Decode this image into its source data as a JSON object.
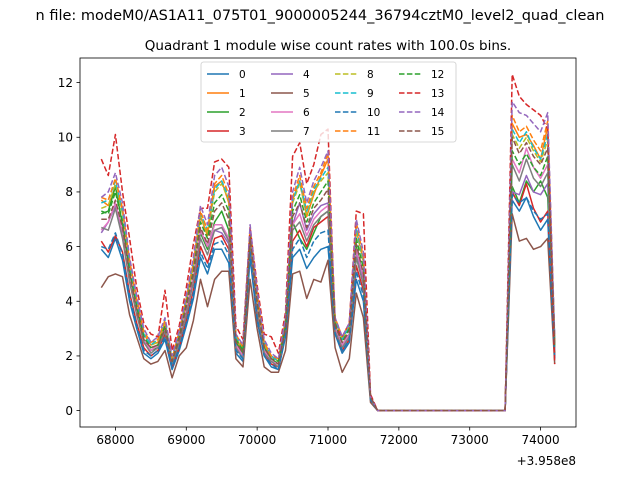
{
  "suptitle": "n file: modeM0/AS1A11_075T01_9000005244_36794cztM0_level2_quad_clean",
  "chart_data": {
    "type": "line",
    "title": "Quadrant 1 module wise count rates with 100.0s bins.",
    "xlabel": "",
    "ylabel": "",
    "x_offset_label": "+3.958e8",
    "xlim": [
      67500,
      74500
    ],
    "ylim": [
      -0.6,
      12.9
    ],
    "xticks": [
      68000,
      69000,
      70000,
      71000,
      72000,
      73000,
      74000
    ],
    "xtick_labels": [
      "68000",
      "69000",
      "70000",
      "71000",
      "72000",
      "73000",
      "74000"
    ],
    "yticks": [
      0,
      2,
      4,
      6,
      8,
      10,
      12
    ],
    "ytick_labels": [
      "0",
      "2",
      "4",
      "6",
      "8",
      "10",
      "12"
    ],
    "legend_position": "top-center",
    "x": [
      67800,
      67900,
      68000,
      68100,
      68200,
      68300,
      68400,
      68500,
      68600,
      68700,
      68800,
      68900,
      69000,
      69100,
      69200,
      69300,
      69400,
      69500,
      69600,
      69700,
      69800,
      69900,
      70000,
      70100,
      70200,
      70300,
      70400,
      70500,
      70600,
      70700,
      70800,
      70900,
      71000,
      71100,
      71200,
      71300,
      71400,
      71500,
      71600,
      71700,
      71800,
      71900,
      72000,
      72100,
      72200,
      72300,
      72400,
      72500,
      72600,
      72700,
      72800,
      72900,
      73000,
      73100,
      73200,
      73300,
      73400,
      73500,
      73600,
      73700,
      73800,
      73900,
      74000,
      74100,
      74200
    ],
    "series": [
      {
        "name": "0",
        "color": "#1f77b4",
        "style": "solid",
        "values": [
          5.9,
          5.6,
          6.3,
          5.5,
          4.0,
          3.0,
          2.1,
          1.9,
          2.1,
          2.6,
          1.5,
          2.2,
          3.1,
          4.1,
          5.6,
          5.0,
          5.9,
          5.9,
          5.4,
          2.1,
          1.8,
          5.6,
          3.3,
          2.0,
          1.6,
          1.5,
          2.7,
          5.6,
          5.9,
          5.2,
          5.6,
          5.9,
          6.0,
          2.8,
          2.1,
          2.5,
          4.8,
          4.0,
          0.4,
          0.0,
          0.0,
          0.0,
          0.0,
          0.0,
          0.0,
          0.0,
          0.0,
          0.0,
          0.0,
          0.0,
          0.0,
          0.0,
          0.0,
          0.0,
          0.0,
          0.0,
          0.0,
          0.0,
          7.7,
          7.3,
          7.8,
          7.1,
          6.6,
          7.0,
          1.9
        ]
      },
      {
        "name": "1",
        "color": "#ff7f0e",
        "style": "solid",
        "values": [
          7.7,
          7.5,
          8.2,
          7.3,
          5.4,
          4.0,
          2.8,
          2.4,
          2.5,
          3.2,
          1.8,
          2.7,
          4.0,
          5.3,
          7.1,
          6.4,
          8.2,
          8.4,
          7.6,
          2.6,
          2.2,
          6.6,
          4.2,
          2.4,
          2.0,
          1.8,
          3.3,
          7.7,
          8.4,
          7.1,
          7.9,
          8.6,
          9.2,
          3.3,
          2.6,
          3.1,
          6.6,
          5.5,
          0.5,
          0.0,
          0.0,
          0.0,
          0.0,
          0.0,
          0.0,
          0.0,
          0.0,
          0.0,
          0.0,
          0.0,
          0.0,
          0.0,
          0.0,
          0.0,
          0.0,
          0.0,
          0.0,
          0.0,
          10.5,
          10.0,
          10.1,
          9.7,
          9.2,
          10.4,
          2.4
        ]
      },
      {
        "name": "2",
        "color": "#2ca02c",
        "style": "solid",
        "values": [
          7.2,
          7.3,
          8.2,
          6.8,
          5.0,
          3.6,
          2.5,
          2.2,
          2.3,
          2.9,
          1.7,
          2.5,
          3.6,
          4.8,
          6.5,
          5.9,
          6.9,
          7.3,
          6.6,
          2.5,
          2.1,
          6.3,
          3.8,
          2.3,
          1.9,
          1.7,
          3.0,
          6.9,
          6.3,
          5.9,
          6.5,
          7.1,
          7.3,
          3.0,
          2.4,
          2.8,
          6.0,
          4.9,
          0.5,
          0.0,
          0.0,
          0.0,
          0.0,
          0.0,
          0.0,
          0.0,
          0.0,
          0.0,
          0.0,
          0.0,
          0.0,
          0.0,
          0.0,
          0.0,
          0.0,
          0.0,
          0.0,
          0.0,
          8.2,
          7.6,
          8.4,
          8.0,
          8.4,
          7.8,
          2.1
        ]
      },
      {
        "name": "3",
        "color": "#d62728",
        "style": "solid",
        "values": [
          6.2,
          5.8,
          6.4,
          5.8,
          4.3,
          3.2,
          2.3,
          2.0,
          2.2,
          2.8,
          1.6,
          2.3,
          3.3,
          4.4,
          6.0,
          5.4,
          6.3,
          6.4,
          5.9,
          2.3,
          1.9,
          6.0,
          3.5,
          2.1,
          1.7,
          1.6,
          2.9,
          6.2,
          6.6,
          6.0,
          6.7,
          6.9,
          7.1,
          2.9,
          2.2,
          2.6,
          5.3,
          4.4,
          0.4,
          0.0,
          0.0,
          0.0,
          0.0,
          0.0,
          0.0,
          0.0,
          0.0,
          0.0,
          0.0,
          0.0,
          0.0,
          0.0,
          0.0,
          0.0,
          0.0,
          0.0,
          0.0,
          0.0,
          8.0,
          7.5,
          8.3,
          7.4,
          6.9,
          7.3,
          2.0
        ]
      },
      {
        "name": "4",
        "color": "#9467bd",
        "style": "solid",
        "values": [
          6.5,
          6.9,
          7.5,
          6.5,
          4.9,
          3.6,
          2.6,
          2.2,
          2.4,
          3.0,
          1.7,
          2.6,
          3.7,
          4.9,
          6.6,
          6.0,
          6.6,
          6.5,
          6.1,
          2.4,
          2.0,
          6.0,
          3.7,
          2.2,
          1.8,
          1.7,
          3.0,
          6.8,
          7.6,
          6.6,
          7.2,
          7.5,
          7.6,
          3.1,
          2.4,
          2.8,
          5.8,
          4.8,
          0.5,
          0.0,
          0.0,
          0.0,
          0.0,
          0.0,
          0.0,
          0.0,
          0.0,
          0.0,
          0.0,
          0.0,
          0.0,
          0.0,
          0.0,
          0.0,
          0.0,
          0.0,
          0.0,
          0.0,
          8.0,
          7.9,
          8.6,
          8.0,
          7.9,
          8.3,
          2.2
        ]
      },
      {
        "name": "5",
        "color": "#8c564b",
        "style": "solid",
        "values": [
          4.5,
          4.9,
          5.0,
          4.9,
          3.5,
          2.7,
          1.9,
          1.7,
          1.8,
          2.2,
          1.2,
          2.0,
          2.3,
          3.3,
          4.8,
          3.8,
          4.8,
          5.1,
          5.1,
          1.9,
          1.6,
          4.8,
          3.0,
          1.6,
          1.4,
          1.4,
          2.2,
          5.0,
          5.1,
          4.1,
          4.8,
          4.7,
          5.5,
          2.3,
          1.4,
          1.9,
          4.3,
          3.4,
          0.3,
          0.0,
          0.0,
          0.0,
          0.0,
          0.0,
          0.0,
          0.0,
          0.0,
          0.0,
          0.0,
          0.0,
          0.0,
          0.0,
          0.0,
          0.0,
          0.0,
          0.0,
          0.0,
          0.0,
          7.2,
          6.2,
          6.3,
          5.9,
          6.0,
          6.3,
          1.7
        ]
      },
      {
        "name": "6",
        "color": "#e377c2",
        "style": "solid",
        "values": [
          6.6,
          6.9,
          7.6,
          6.6,
          4.9,
          3.7,
          2.6,
          2.2,
          2.4,
          3.0,
          1.8,
          2.6,
          3.7,
          4.9,
          6.6,
          6.0,
          6.8,
          6.8,
          6.3,
          2.4,
          2.0,
          6.2,
          3.8,
          2.2,
          1.8,
          1.7,
          3.0,
          6.8,
          7.2,
          6.4,
          7.0,
          7.3,
          7.5,
          3.0,
          2.4,
          2.8,
          5.9,
          4.9,
          0.5,
          0.0,
          0.0,
          0.0,
          0.0,
          0.0,
          0.0,
          0.0,
          0.0,
          0.0,
          0.0,
          0.0,
          0.0,
          0.0,
          0.0,
          0.0,
          0.0,
          0.0,
          0.0,
          0.0,
          9.2,
          8.7,
          9.6,
          8.9,
          8.5,
          9.0,
          2.4
        ]
      },
      {
        "name": "7",
        "color": "#7f7f7f",
        "style": "solid",
        "values": [
          6.7,
          6.6,
          7.4,
          6.3,
          4.7,
          3.5,
          2.5,
          2.1,
          2.3,
          2.9,
          1.7,
          2.5,
          3.5,
          4.7,
          6.3,
          5.7,
          6.6,
          6.7,
          6.2,
          2.3,
          1.9,
          6.1,
          3.6,
          2.1,
          1.8,
          1.6,
          2.9,
          6.6,
          6.9,
          6.2,
          6.8,
          7.1,
          7.3,
          2.9,
          2.3,
          2.7,
          5.6,
          4.6,
          0.4,
          0.0,
          0.0,
          0.0,
          0.0,
          0.0,
          0.0,
          0.0,
          0.0,
          0.0,
          0.0,
          0.0,
          0.0,
          0.0,
          0.0,
          0.0,
          0.0,
          0.0,
          0.0,
          0.0,
          9.0,
          8.4,
          9.2,
          8.5,
          8.2,
          8.7,
          2.3
        ]
      },
      {
        "name": "8",
        "color": "#bcbd22",
        "style": "dashed",
        "values": [
          7.4,
          7.5,
          8.3,
          7.2,
          5.3,
          3.9,
          2.8,
          2.4,
          2.5,
          3.2,
          1.9,
          2.8,
          4.0,
          5.3,
          7.1,
          6.5,
          8.0,
          8.3,
          7.7,
          2.7,
          2.2,
          6.5,
          4.1,
          2.4,
          2.0,
          1.8,
          3.2,
          7.6,
          8.3,
          7.2,
          8.0,
          8.4,
          8.7,
          3.3,
          2.6,
          3.1,
          6.6,
          5.4,
          0.5,
          0.0,
          0.0,
          0.0,
          0.0,
          0.0,
          0.0,
          0.0,
          0.0,
          0.0,
          0.0,
          0.0,
          0.0,
          0.0,
          0.0,
          0.0,
          0.0,
          0.0,
          0.0,
          0.0,
          10.1,
          9.6,
          10.0,
          9.5,
          9.1,
          9.9,
          2.5
        ]
      },
      {
        "name": "9",
        "color": "#17becf",
        "style": "dashed",
        "values": [
          7.6,
          7.7,
          8.4,
          7.3,
          5.4,
          4.0,
          2.8,
          2.4,
          2.6,
          3.3,
          1.9,
          2.8,
          4.1,
          5.4,
          7.2,
          6.6,
          8.1,
          8.4,
          7.8,
          2.7,
          2.3,
          6.6,
          4.2,
          2.5,
          2.0,
          1.8,
          3.3,
          7.7,
          8.4,
          7.3,
          8.1,
          8.5,
          8.9,
          3.3,
          2.6,
          3.1,
          6.7,
          5.5,
          0.5,
          0.0,
          0.0,
          0.0,
          0.0,
          0.0,
          0.0,
          0.0,
          0.0,
          0.0,
          0.0,
          0.0,
          0.0,
          0.0,
          0.0,
          0.0,
          0.0,
          0.0,
          0.0,
          0.0,
          10.3,
          9.8,
          10.2,
          9.6,
          9.2,
          10.1,
          2.6
        ]
      },
      {
        "name": "10",
        "color": "#1f77b4",
        "style": "dashed",
        "values": [
          6.0,
          5.9,
          6.5,
          5.7,
          4.2,
          3.1,
          2.2,
          2.0,
          2.2,
          2.7,
          1.6,
          2.3,
          3.2,
          4.3,
          5.8,
          5.2,
          6.1,
          6.2,
          5.7,
          2.2,
          1.9,
          5.8,
          3.4,
          2.0,
          1.7,
          1.5,
          2.8,
          5.9,
          6.3,
          5.6,
          6.2,
          6.5,
          6.6,
          2.8,
          2.2,
          2.6,
          5.1,
          4.2,
          0.4,
          0.0,
          0.0,
          0.0,
          0.0,
          0.0,
          0.0,
          0.0,
          0.0,
          0.0,
          0.0,
          0.0,
          0.0,
          0.0,
          0.0,
          0.0,
          0.0,
          0.0,
          0.0,
          0.0,
          7.9,
          7.6,
          7.8,
          7.3,
          7.0,
          7.2,
          1.9
        ]
      },
      {
        "name": "11",
        "color": "#ff7f0e",
        "style": "dashed",
        "values": [
          7.8,
          7.7,
          8.5,
          7.4,
          5.5,
          4.1,
          2.9,
          2.5,
          2.6,
          3.3,
          1.9,
          2.9,
          4.1,
          5.4,
          7.3,
          6.6,
          8.3,
          8.6,
          7.9,
          2.8,
          2.3,
          6.7,
          4.3,
          2.5,
          2.0,
          1.9,
          3.3,
          7.8,
          8.6,
          7.4,
          8.2,
          8.7,
          9.4,
          3.4,
          2.7,
          3.2,
          6.9,
          5.6,
          0.5,
          0.0,
          0.0,
          0.0,
          0.0,
          0.0,
          0.0,
          0.0,
          0.0,
          0.0,
          0.0,
          0.0,
          0.0,
          0.0,
          0.0,
          0.0,
          0.0,
          0.0,
          0.0,
          0.0,
          10.8,
          10.2,
          10.4,
          9.9,
          9.5,
          10.6,
          2.6
        ]
      },
      {
        "name": "12",
        "color": "#2ca02c",
        "style": "dashed",
        "values": [
          7.3,
          7.2,
          8.0,
          6.9,
          5.1,
          3.8,
          2.7,
          2.3,
          2.4,
          3.1,
          1.8,
          2.7,
          3.9,
          5.1,
          6.9,
          6.3,
          7.6,
          7.9,
          7.3,
          2.6,
          2.2,
          6.4,
          4.0,
          2.3,
          1.9,
          1.8,
          3.1,
          7.3,
          7.9,
          6.9,
          7.6,
          8.0,
          8.4,
          3.2,
          2.5,
          3.0,
          6.3,
          5.2,
          0.5,
          0.0,
          0.0,
          0.0,
          0.0,
          0.0,
          0.0,
          0.0,
          0.0,
          0.0,
          0.0,
          0.0,
          0.0,
          0.0,
          0.0,
          0.0,
          0.0,
          0.0,
          0.0,
          0.0,
          9.5,
          9.0,
          9.4,
          8.9,
          8.6,
          9.3,
          2.3
        ]
      },
      {
        "name": "13",
        "color": "#d62728",
        "style": "dashed",
        "values": [
          9.2,
          8.6,
          10.1,
          8.0,
          6.3,
          4.5,
          3.2,
          2.8,
          2.7,
          4.4,
          2.2,
          3.1,
          4.5,
          6.1,
          7.4,
          7.4,
          9.1,
          9.2,
          8.9,
          3.1,
          2.6,
          6.7,
          4.6,
          2.8,
          2.7,
          2.1,
          3.6,
          9.3,
          9.8,
          8.3,
          9.0,
          10.1,
          10.3,
          3.1,
          2.7,
          3.2,
          7.3,
          7.2,
          0.6,
          0.0,
          0.0,
          0.0,
          0.0,
          0.0,
          0.0,
          0.0,
          0.0,
          0.0,
          0.0,
          0.0,
          0.0,
          0.0,
          0.0,
          0.0,
          0.0,
          0.0,
          0.0,
          0.0,
          12.3,
          11.5,
          11.2,
          11.0,
          10.8,
          10.3,
          1.7
        ]
      },
      {
        "name": "14",
        "color": "#9467bd",
        "style": "dashed",
        "values": [
          7.8,
          8.0,
          8.7,
          7.6,
          5.6,
          4.2,
          3.0,
          2.5,
          2.7,
          3.4,
          2.0,
          2.9,
          4.2,
          5.6,
          7.5,
          6.8,
          8.6,
          8.9,
          8.2,
          2.8,
          2.4,
          6.8,
          4.4,
          2.6,
          2.1,
          1.9,
          3.4,
          8.0,
          8.9,
          7.6,
          8.4,
          8.9,
          9.5,
          3.4,
          2.7,
          3.2,
          7.0,
          5.8,
          0.5,
          0.0,
          0.0,
          0.0,
          0.0,
          0.0,
          0.0,
          0.0,
          0.0,
          0.0,
          0.0,
          0.0,
          0.0,
          0.0,
          0.0,
          0.0,
          0.0,
          0.0,
          0.0,
          0.0,
          11.3,
          10.9,
          10.8,
          10.5,
          10.2,
          10.9,
          2.7
        ]
      },
      {
        "name": "15",
        "color": "#8c564b",
        "style": "dashed",
        "values": [
          7.0,
          7.0,
          7.7,
          6.7,
          5.0,
          3.7,
          2.6,
          2.3,
          2.4,
          3.0,
          1.8,
          2.6,
          3.8,
          5.0,
          6.7,
          6.1,
          7.3,
          7.6,
          7.0,
          2.5,
          2.1,
          6.3,
          3.9,
          2.3,
          1.9,
          1.7,
          3.0,
          7.1,
          7.6,
          6.7,
          7.4,
          7.7,
          8.1,
          3.1,
          2.5,
          2.9,
          6.1,
          5.0,
          0.5,
          0.0,
          0.0,
          0.0,
          0.0,
          0.0,
          0.0,
          0.0,
          0.0,
          0.0,
          0.0,
          0.0,
          0.0,
          0.0,
          0.0,
          0.0,
          0.0,
          0.0,
          0.0,
          0.0,
          10.0,
          9.4,
          9.8,
          9.3,
          9.0,
          9.6,
          2.4
        ]
      }
    ]
  }
}
